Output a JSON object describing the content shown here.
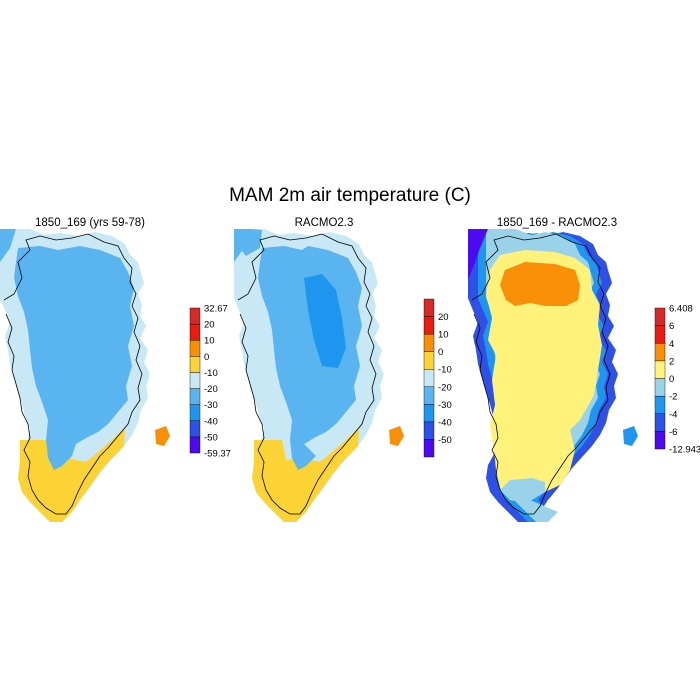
{
  "figure": {
    "title": "MAM 2m air temperature (C)"
  },
  "panels": [
    {
      "id": "model",
      "title": "1850_169 (yrs 59-78)",
      "colorbar": {
        "colors": [
          "#4b0af0",
          "#2e50e6",
          "#1e96f0",
          "#5ab4ef",
          "#c8e8f5",
          "#fbd335",
          "#f88f07",
          "#ea1c12",
          "#d42a29"
        ],
        "labels": [
          "-59.37",
          "-50",
          "-40",
          "-30",
          "-20",
          "-10",
          "0",
          "10",
          "20",
          "32.67"
        ],
        "edge_labels": true
      }
    },
    {
      "id": "racmo",
      "title": "RACMO2.3",
      "colorbar": {
        "colors": [
          "#4b0af0",
          "#2e50e6",
          "#1e96f0",
          "#5ab4ef",
          "#c8e8f5",
          "#fbd335",
          "#f88f07",
          "#ea1c12",
          "#d42a29"
        ],
        "labels": [
          "-50",
          "-40",
          "-30",
          "-20",
          "-10",
          "0",
          "10",
          "20"
        ],
        "edge_labels": false
      }
    },
    {
      "id": "diff",
      "title": "1850_169 - RACMO2.3",
      "colorbar": {
        "colors": [
          "#4b0af0",
          "#2e50e6",
          "#1e96f0",
          "#9ad2ea",
          "#fef27a",
          "#f88f07",
          "#ea1c12",
          "#d42a29"
        ],
        "labels": [
          "-12.943",
          "-6",
          "-4",
          "-2",
          "0",
          "2",
          "4",
          "6",
          "6.408"
        ],
        "edge_labels": true
      }
    }
  ]
}
